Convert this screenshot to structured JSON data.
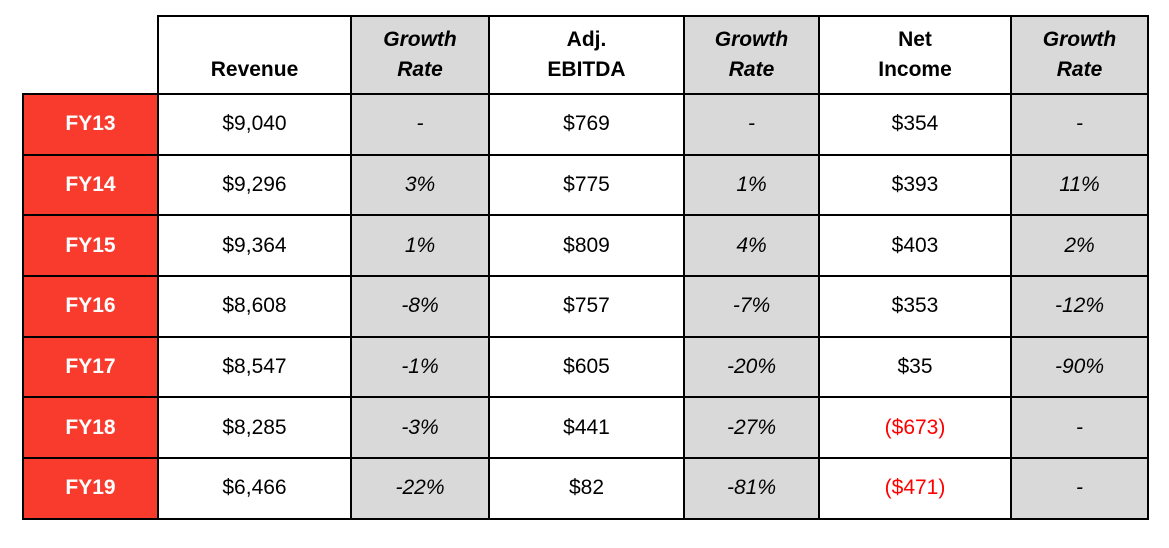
{
  "header": {
    "corner": "",
    "cols": [
      {
        "l1": "",
        "l2": "Revenue",
        "kind": "value"
      },
      {
        "l1": "Growth",
        "l2": "Rate",
        "kind": "growth"
      },
      {
        "l1": "Adj.",
        "l2": "EBITDA",
        "kind": "value"
      },
      {
        "l1": "Growth",
        "l2": "Rate",
        "kind": "growth"
      },
      {
        "l1": "Net",
        "l2": "Income",
        "kind": "value"
      },
      {
        "l1": "Growth",
        "l2": "Rate",
        "kind": "growth"
      }
    ]
  },
  "rows": [
    {
      "year": "FY13",
      "cells": [
        "$9,040",
        "-",
        "$769",
        "-",
        "$354",
        "-"
      ]
    },
    {
      "year": "FY14",
      "cells": [
        "$9,296",
        "3%",
        "$775",
        "1%",
        "$393",
        "11%"
      ]
    },
    {
      "year": "FY15",
      "cells": [
        "$9,364",
        "1%",
        "$809",
        "4%",
        "$403",
        "2%"
      ]
    },
    {
      "year": "FY16",
      "cells": [
        "$8,608",
        "-8%",
        "$757",
        "-7%",
        "$353",
        "-12%"
      ]
    },
    {
      "year": "FY17",
      "cells": [
        "$8,547",
        "-1%",
        "$605",
        "-20%",
        "$35",
        "-90%"
      ]
    },
    {
      "year": "FY18",
      "cells": [
        "$8,285",
        "-3%",
        "$441",
        "-27%",
        "($673)",
        "-"
      ]
    },
    {
      "year": "FY19",
      "cells": [
        "$6,466",
        "-22%",
        "$82",
        "-81%",
        "($471)",
        "-"
      ]
    }
  ],
  "colors": {
    "row_header_red": "#f93b2d",
    "negative_text_red": "#ff0000",
    "growth_column_gray": "#d9d9d9",
    "border_black": "#000000",
    "cell_white": "#ffffff"
  },
  "chart_data": {
    "type": "table",
    "title": "",
    "categories": [
      "FY13",
      "FY14",
      "FY15",
      "FY16",
      "FY17",
      "FY18",
      "FY19"
    ],
    "series": [
      {
        "name": "Revenue",
        "values": [
          9040,
          9296,
          9364,
          8608,
          8547,
          8285,
          6466
        ]
      },
      {
        "name": "Revenue Growth Rate (%)",
        "values": [
          null,
          3,
          1,
          -8,
          -1,
          -3,
          -22
        ]
      },
      {
        "name": "Adj. EBITDA",
        "values": [
          769,
          775,
          809,
          757,
          605,
          441,
          82
        ]
      },
      {
        "name": "Adj. EBITDA Growth Rate (%)",
        "values": [
          null,
          1,
          4,
          -7,
          -20,
          -27,
          -81
        ]
      },
      {
        "name": "Net Income",
        "values": [
          354,
          393,
          403,
          353,
          35,
          -673,
          -471
        ]
      },
      {
        "name": "Net Income Growth Rate (%)",
        "values": [
          null,
          11,
          2,
          -12,
          -90,
          null,
          null
        ]
      }
    ],
    "layout_hints": {
      "row_headers_style": "white bold on red",
      "growth_columns_style": "bold italic header on light gray",
      "negative_net_income_style": "red parenthesized text",
      "grid": "black 2px borders, top-left corner cell borderless"
    }
  }
}
